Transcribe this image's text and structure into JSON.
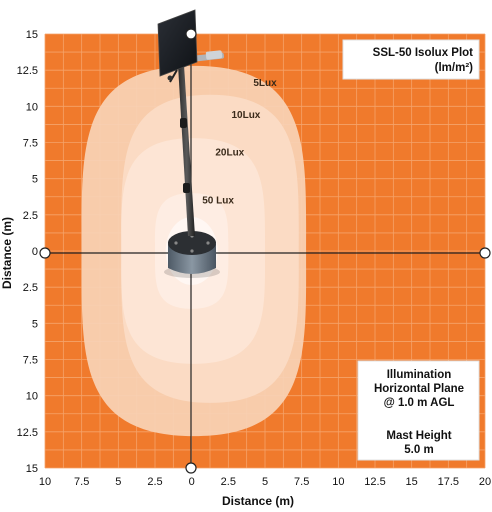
{
  "chart_data": {
    "type": "heatmap",
    "title": "SSL-50 Isolux Plot",
    "subtitle": "(lm/m²)",
    "xlabel": "Distance (m)",
    "ylabel": "Distance (m)",
    "xlim": [
      -10,
      20
    ],
    "ylim": [
      -15,
      15
    ],
    "x_ticks": [
      "10",
      "7.5",
      "5",
      "2.5",
      "0",
      "2.5",
      "5",
      "7.5",
      "10",
      "12.5",
      "15",
      "17.5",
      "20"
    ],
    "y_ticks_upper": [
      "15",
      "12.5",
      "10",
      "7.5",
      "5",
      "2.5",
      "0"
    ],
    "y_ticks_lower": [
      "2.5",
      "5",
      "7.5",
      "10",
      "12.5",
      "15"
    ],
    "grid": true,
    "colors": {
      "background": "#f07a2c",
      "grid": "#f5a36a",
      "contour_5": "#f9d3b6",
      "contour_10": "#fbdcc5",
      "contour_20": "#fde6d6",
      "contour_50": "#feeee4",
      "center": "#fff8f3"
    },
    "contours": [
      {
        "label": "5Lux",
        "level": 5,
        "x_range": [
          -7.5,
          7.8
        ],
        "y_range": [
          -12.8,
          12.8
        ]
      },
      {
        "label": "10Lux",
        "level": 10,
        "x_range": [
          -4.8,
          7.3
        ],
        "y_range": [
          -10.5,
          10.8
        ]
      },
      {
        "label": "20Lux",
        "level": 20,
        "x_range": [
          -4.8,
          5.0
        ],
        "y_range": [
          -7.8,
          7.8
        ]
      },
      {
        "label": "50 Lux",
        "level": 50,
        "x_range": [
          -2.5,
          2.5
        ],
        "y_range": [
          -4.0,
          4.0
        ]
      }
    ],
    "annotation": {
      "line1": "Illumination",
      "line2": "Horizontal Plane",
      "line3": "@ 1.0 m AGL",
      "line4": "Mast Height",
      "line5": "5.0 m"
    }
  }
}
